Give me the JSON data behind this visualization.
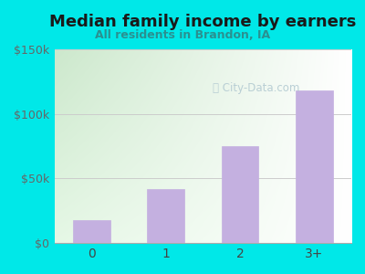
{
  "title": "Median family income by earners",
  "subtitle": "All residents in Brandon, IA",
  "categories": [
    "0",
    "1",
    "2",
    "3+"
  ],
  "values": [
    18000,
    42000,
    75000,
    118000
  ],
  "bar_color": "#c4b0e0",
  "bar_edge_color": "#c4b0e0",
  "title_color": "#1a1a1a",
  "subtitle_color": "#2a9090",
  "outer_bg_color": "#00e8e8",
  "ytick_labels": [
    "$0",
    "$50k",
    "$100k",
    "$150k"
  ],
  "ytick_values": [
    0,
    50000,
    100000,
    150000
  ],
  "ylim": [
    0,
    150000
  ],
  "watermark": "City-Data.com",
  "watermark_color": "#b0c8d0",
  "grad_top": "#cce8cc",
  "grad_bottom": "#f0fff0",
  "grad_right": "#ffffff"
}
